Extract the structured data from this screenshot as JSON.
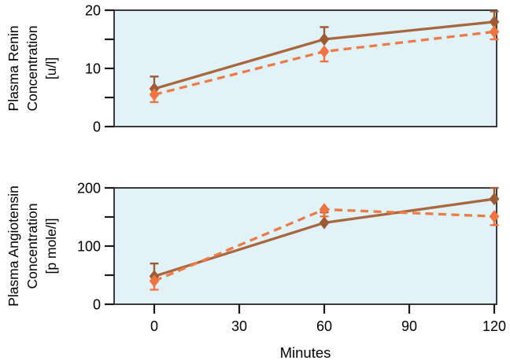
{
  "colors": {
    "plot_bg": "#e1f3f9",
    "frame": "#3a3b3d",
    "axis": "#1a1a1a",
    "text": "#000000",
    "brown": "#9d5b33",
    "brown_line": "#a9673f",
    "orange": "#f07440",
    "orange_line": "#ec7b46"
  },
  "chart_data": [
    {
      "type": "line",
      "ylabel_lines": [
        "Plasma Renin",
        "Concentration",
        "[u/l]"
      ],
      "ylim": [
        0,
        20
      ],
      "yticks": [
        {
          "v": 0,
          "label": "0"
        },
        {
          "v": 5,
          "label": ""
        },
        {
          "v": 10,
          "label": "10"
        },
        {
          "v": 15,
          "label": ""
        },
        {
          "v": 20,
          "label": "20"
        }
      ],
      "xticks": [],
      "xlabel": "",
      "grid": false,
      "legend": "none",
      "series": [
        {
          "name": "solid-brown",
          "line_style": "solid",
          "line_color": "#a9673f",
          "marker_color": "#9d5b33",
          "marker": "diamond",
          "points": [
            {
              "x": 0,
              "y": 6.5,
              "up": 2.1,
              "down": 0
            },
            {
              "x": 60,
              "y": 15.0,
              "up": 2.1,
              "down": 0
            },
            {
              "x": 120,
              "y": 18.0,
              "up": 1.8,
              "down": 0
            }
          ]
        },
        {
          "name": "dashed-orange",
          "line_style": "dashed",
          "line_color": "#ec7b46",
          "marker_color": "#f07440",
          "marker": "diamond",
          "points": [
            {
              "x": 0,
              "y": 5.5,
              "up": 0,
              "down": 1.3
            },
            {
              "x": 60,
              "y": 12.9,
              "up": 0,
              "down": 1.7
            },
            {
              "x": 120,
              "y": 16.3,
              "up": 0,
              "down": 1.3
            }
          ]
        }
      ]
    },
    {
      "type": "line",
      "ylabel_lines": [
        "Plasma Angiotensin",
        "Concentration",
        "[p mole/l]"
      ],
      "ylim": [
        0,
        200
      ],
      "yticks": [
        {
          "v": 0,
          "label": "0"
        },
        {
          "v": 50,
          "label": ""
        },
        {
          "v": 100,
          "label": "100"
        },
        {
          "v": 150,
          "label": ""
        },
        {
          "v": 200,
          "label": "200"
        }
      ],
      "xticks": [
        {
          "v": 0,
          "label": "0"
        },
        {
          "v": 30,
          "label": "30"
        },
        {
          "v": 60,
          "label": "60"
        },
        {
          "v": 90,
          "label": "90"
        },
        {
          "v": 120,
          "label": "120"
        }
      ],
      "xlabel": "Minutes",
      "grid": false,
      "legend": "none",
      "series": [
        {
          "name": "solid-brown",
          "line_style": "solid",
          "line_color": "#a9673f",
          "marker_color": "#9d5b33",
          "marker": "diamond",
          "points": [
            {
              "x": 0,
              "y": 48,
              "up": 22,
              "down": 0
            },
            {
              "x": 60,
              "y": 140,
              "up": 18,
              "down": 0
            },
            {
              "x": 120,
              "y": 181,
              "up": 19,
              "down": 0
            }
          ]
        },
        {
          "name": "dashed-orange",
          "line_style": "dashed",
          "line_color": "#ec7b46",
          "marker_color": "#f07440",
          "marker": "diamond",
          "points": [
            {
              "x": 0,
              "y": 40,
              "up": 0,
              "down": 15
            },
            {
              "x": 60,
              "y": 163,
              "up": 0,
              "down": 12
            },
            {
              "x": 120,
              "y": 151,
              "up": 0,
              "down": 15
            }
          ]
        }
      ]
    }
  ]
}
